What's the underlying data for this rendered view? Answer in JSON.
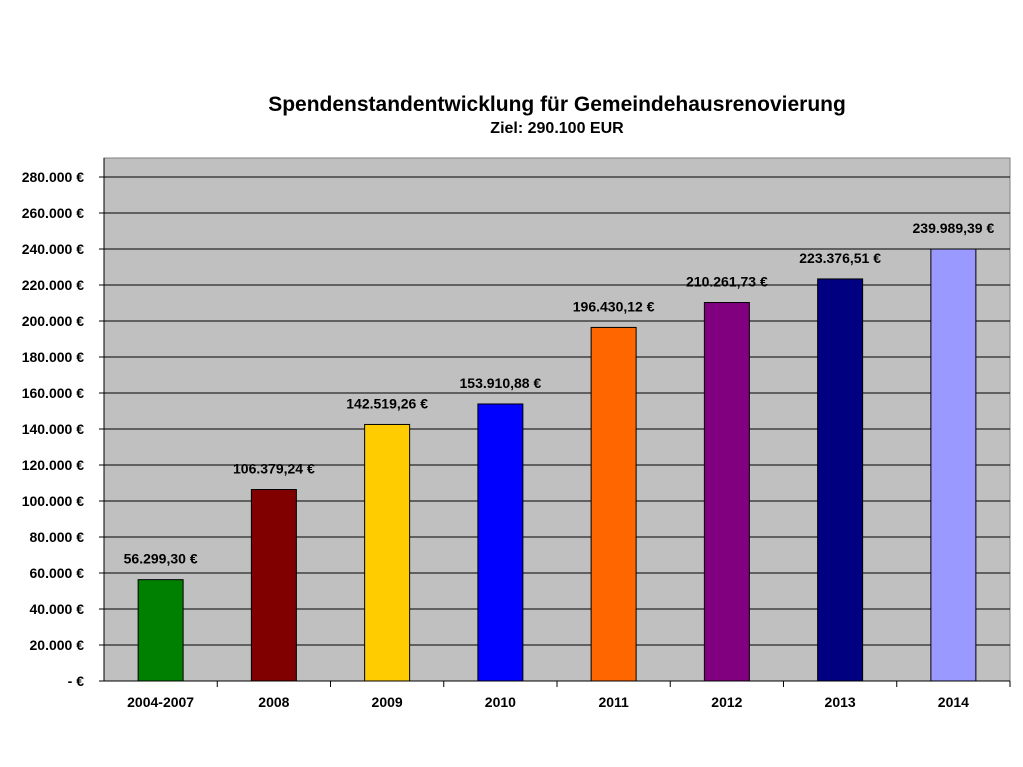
{
  "chart_data": {
    "type": "bar",
    "title": "Spendenstandentwicklung für Gemeindehausrenovierung",
    "subtitle": "Ziel: 290.100 EUR",
    "xlabel": "",
    "ylabel": "",
    "ylim": [
      0,
      290000
    ],
    "yticks": [
      0,
      20000,
      40000,
      60000,
      80000,
      100000,
      120000,
      140000,
      160000,
      180000,
      200000,
      220000,
      240000,
      260000,
      280000
    ],
    "ytick_labels": [
      "- €",
      "20.000 €",
      "40.000 €",
      "60.000 €",
      "80.000 €",
      "100.000 €",
      "120.000 €",
      "140.000 €",
      "160.000 €",
      "180.000 €",
      "200.000 €",
      "220.000 €",
      "240.000 €",
      "260.000 €",
      "280.000 €"
    ],
    "categories": [
      "2004-2007",
      "2008",
      "2009",
      "2010",
      "2011",
      "2012",
      "2013",
      "2014"
    ],
    "values": [
      56299.3,
      106379.24,
      142519.26,
      153910.88,
      196430.12,
      210261.73,
      223376.51,
      239989.39
    ],
    "data_labels": [
      "56.299,30 €",
      "106.379,24 €",
      "142.519,26 €",
      "153.910,88 €",
      "196.430,12 €",
      "210.261,73 €",
      "223.376,51 €",
      "239.989,39 €"
    ],
    "bar_colors": [
      "#008000",
      "#800000",
      "#ffcc00",
      "#0000ff",
      "#ff6600",
      "#800080",
      "#000080",
      "#9999ff"
    ],
    "plot_background": "#c0c0c0",
    "grid": true,
    "legend": "none"
  }
}
